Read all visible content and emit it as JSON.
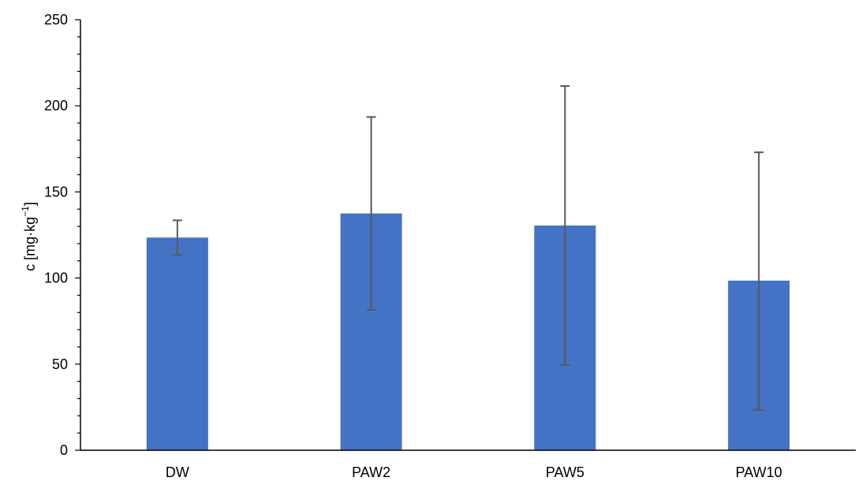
{
  "chart_data": {
    "type": "bar",
    "categories": [
      "DW",
      "PAW2",
      "PAW5",
      "PAW10"
    ],
    "values": [
      123.5,
      137.5,
      130.5,
      98.5
    ],
    "error_upper": [
      133.5,
      193.5,
      211.5,
      173.0
    ],
    "error_lower": [
      113.5,
      81.5,
      49.5,
      23.5
    ],
    "title": "",
    "xlabel": "",
    "ylabel": "c [mg·kg",
    "ylabel_sup": "−1",
    "ylabel_suffix": "]",
    "ylim": [
      0,
      250
    ],
    "yticks": [
      0,
      50,
      100,
      150,
      200,
      250
    ],
    "minor_tick_step": 10,
    "grid": false,
    "legend": "none",
    "colors": {
      "bar": "#4472C4",
      "error_bar": "#595959",
      "axis": "#000000"
    }
  }
}
